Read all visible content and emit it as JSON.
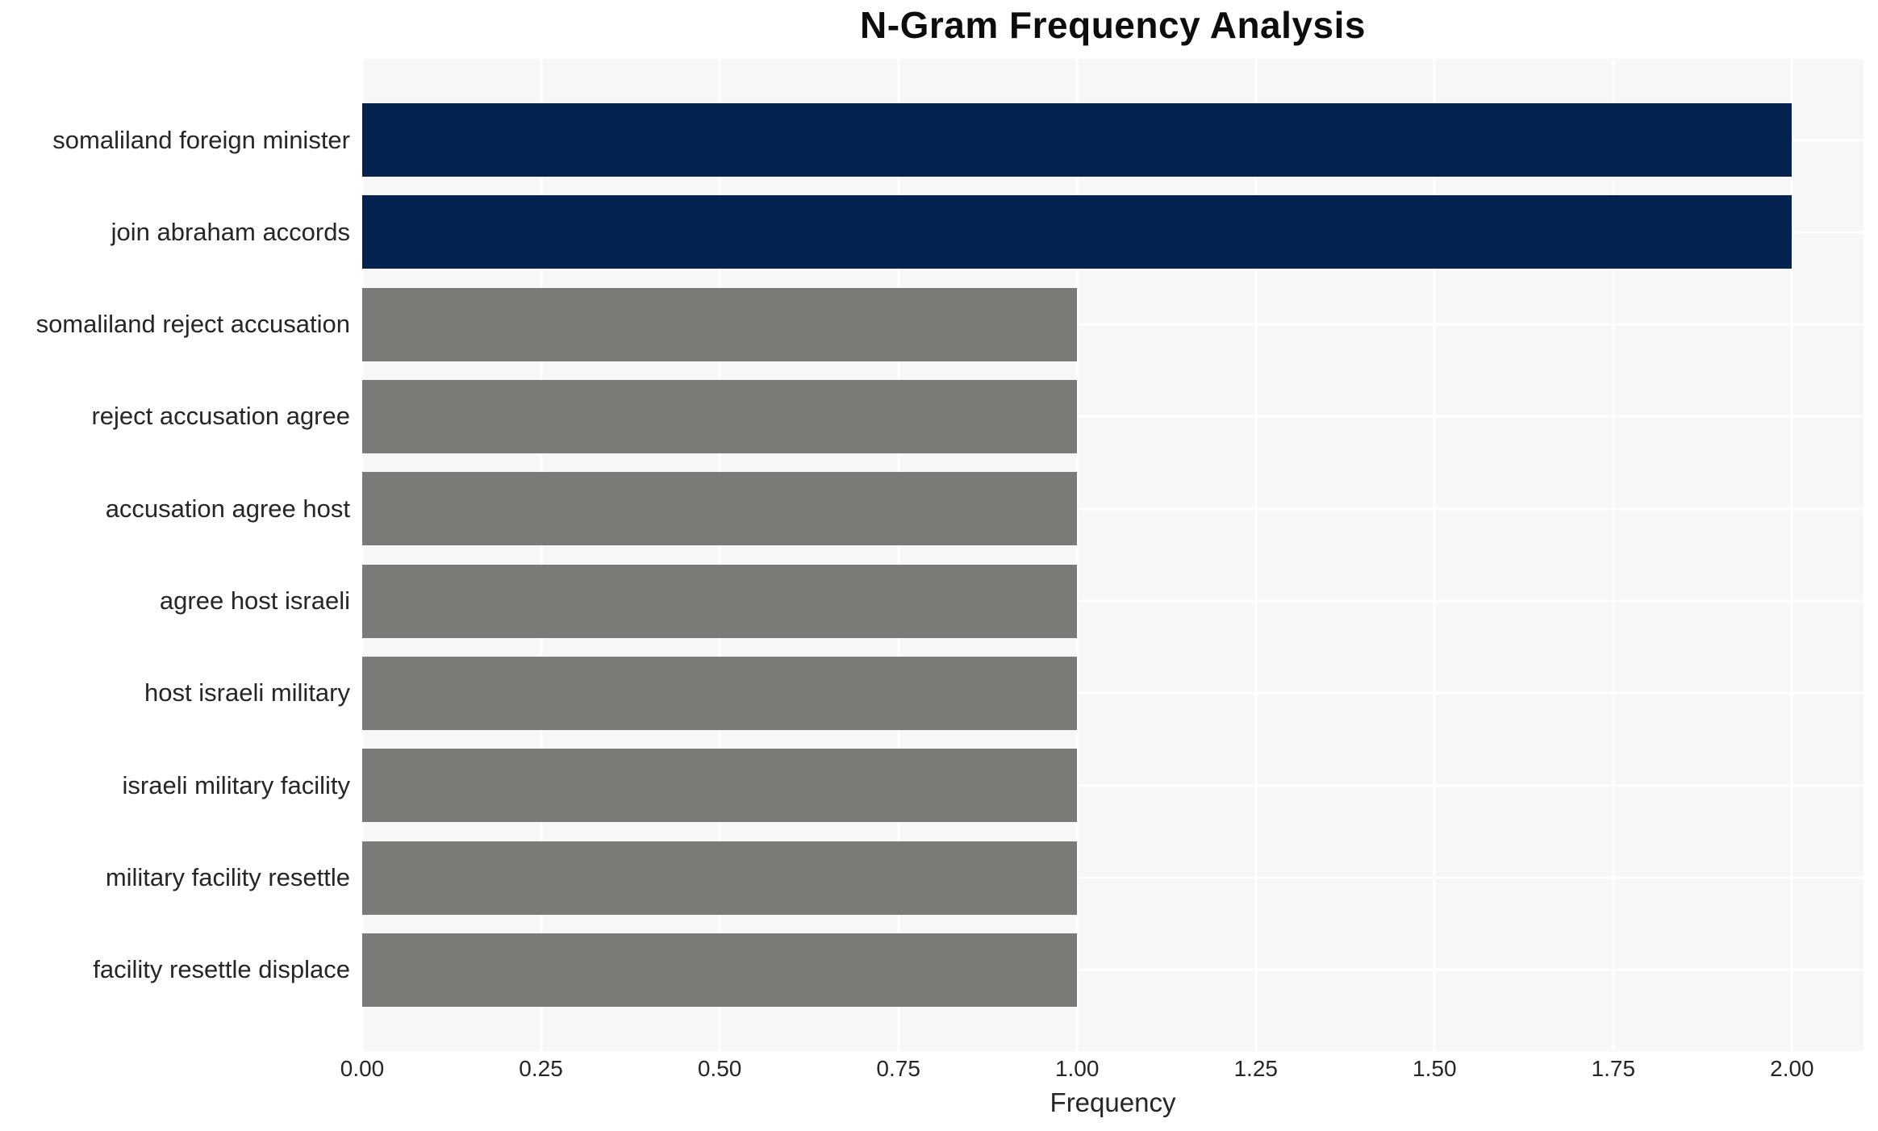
{
  "page": {
    "background": "#FFFFFF"
  },
  "chart_data": {
    "type": "bar",
    "orientation": "horizontal",
    "title": "N-Gram Frequency Analysis",
    "xlabel": "Frequency",
    "ylabel": "",
    "categories": [
      "somaliland foreign minister",
      "join abraham accords",
      "somaliland reject accusation",
      "reject accusation agree",
      "accusation agree host",
      "agree host israeli",
      "host israeli military",
      "israeli military facility",
      "military facility resettle",
      "facility resettle displace"
    ],
    "values": [
      2,
      2,
      1,
      1,
      1,
      1,
      1,
      1,
      1,
      1
    ],
    "bar_colors": [
      "#03224D",
      "#03224D",
      "#7A7A76",
      "#7A7A76",
      "#7A7A76",
      "#7A7A76",
      "#7A7A76",
      "#7A7A76",
      "#7A7A76",
      "#7A7A76"
    ],
    "xlim": [
      0,
      2.1
    ],
    "xticks": [
      0,
      0.25,
      0.5,
      0.75,
      1.0,
      1.25,
      1.5,
      1.75,
      2.0
    ],
    "xtick_labels": [
      "0.00",
      "0.25",
      "0.50",
      "0.75",
      "1.00",
      "1.25",
      "1.50",
      "1.75",
      "2.00"
    ],
    "grid": true,
    "grid_color": "#FFFFFF",
    "plot_bg": "#F7F7F7",
    "text_color": "#262626",
    "legend": false
  }
}
